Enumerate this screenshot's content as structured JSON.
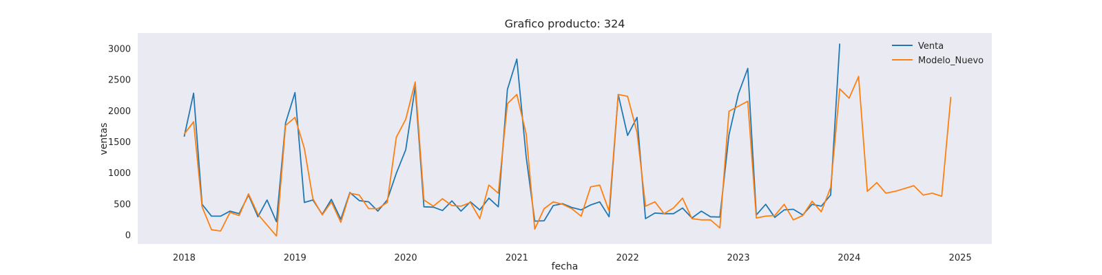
{
  "chart_data": {
    "type": "line",
    "title": "Grafico producto: 324",
    "xlabel": "fecha",
    "ylabel": "ventas",
    "xlim": [
      "2017-08-01",
      "2025-04-15"
    ],
    "ylim": [
      -150,
      3250
    ],
    "x_ticks": [
      {
        "value": "2018-01-01",
        "label": "2018"
      },
      {
        "value": "2019-01-01",
        "label": "2019"
      },
      {
        "value": "2020-01-01",
        "label": "2020"
      },
      {
        "value": "2021-01-01",
        "label": "2021"
      },
      {
        "value": "2022-01-01",
        "label": "2022"
      },
      {
        "value": "2023-01-01",
        "label": "2023"
      },
      {
        "value": "2024-01-01",
        "label": "2024"
      },
      {
        "value": "2025-01-01",
        "label": "2025"
      }
    ],
    "y_ticks": [
      0,
      500,
      1000,
      1500,
      2000,
      2500,
      3000
    ],
    "grid": false,
    "legend_position": "top-right",
    "series": [
      {
        "name": "Venta",
        "color": "#1f77b4",
        "points": [
          [
            "2018-01-01",
            1580
          ],
          [
            "2018-02-01",
            2280
          ],
          [
            "2018-03-01",
            490
          ],
          [
            "2018-04-01",
            300
          ],
          [
            "2018-05-01",
            300
          ],
          [
            "2018-06-01",
            380
          ],
          [
            "2018-07-01",
            340
          ],
          [
            "2018-08-01",
            640
          ],
          [
            "2018-09-01",
            290
          ],
          [
            "2018-10-01",
            560
          ],
          [
            "2018-11-01",
            210
          ],
          [
            "2018-12-01",
            1800
          ],
          [
            "2019-01-01",
            2290
          ],
          [
            "2019-02-01",
            520
          ],
          [
            "2019-03-01",
            560
          ],
          [
            "2019-04-01",
            330
          ],
          [
            "2019-05-01",
            570
          ],
          [
            "2019-06-01",
            250
          ],
          [
            "2019-07-01",
            680
          ],
          [
            "2019-08-01",
            550
          ],
          [
            "2019-09-01",
            530
          ],
          [
            "2019-10-01",
            380
          ],
          [
            "2019-11-01",
            560
          ],
          [
            "2019-12-01",
            990
          ],
          [
            "2020-01-01",
            1370
          ],
          [
            "2020-02-01",
            2380
          ],
          [
            "2020-03-01",
            450
          ],
          [
            "2020-04-01",
            445
          ],
          [
            "2020-05-01",
            390
          ],
          [
            "2020-06-01",
            545
          ],
          [
            "2020-07-01",
            380
          ],
          [
            "2020-08-01",
            530
          ],
          [
            "2020-09-01",
            400
          ],
          [
            "2020-10-01",
            590
          ],
          [
            "2020-11-01",
            450
          ],
          [
            "2020-12-01",
            2340
          ],
          [
            "2021-01-01",
            2830
          ],
          [
            "2021-02-01",
            1250
          ],
          [
            "2021-03-01",
            220
          ],
          [
            "2021-04-01",
            225
          ],
          [
            "2021-05-01",
            470
          ],
          [
            "2021-06-01",
            500
          ],
          [
            "2021-07-01",
            440
          ],
          [
            "2021-08-01",
            400
          ],
          [
            "2021-09-01",
            480
          ],
          [
            "2021-10-01",
            530
          ],
          [
            "2021-11-01",
            290
          ],
          [
            "2021-12-01",
            2260
          ],
          [
            "2022-01-01",
            1600
          ],
          [
            "2022-02-01",
            1890
          ],
          [
            "2022-03-01",
            260
          ],
          [
            "2022-04-01",
            350
          ],
          [
            "2022-05-01",
            340
          ],
          [
            "2022-06-01",
            340
          ],
          [
            "2022-07-01",
            430
          ],
          [
            "2022-08-01",
            270
          ],
          [
            "2022-09-01",
            380
          ],
          [
            "2022-10-01",
            290
          ],
          [
            "2022-11-01",
            285
          ],
          [
            "2022-12-01",
            1610
          ],
          [
            "2023-01-01",
            2270
          ],
          [
            "2023-02-01",
            2680
          ],
          [
            "2023-03-01",
            320
          ],
          [
            "2023-04-01",
            490
          ],
          [
            "2023-05-01",
            280
          ],
          [
            "2023-06-01",
            400
          ],
          [
            "2023-07-01",
            410
          ],
          [
            "2023-08-01",
            320
          ],
          [
            "2023-09-01",
            490
          ],
          [
            "2023-10-01",
            460
          ],
          [
            "2023-11-01",
            640
          ],
          [
            "2023-12-01",
            3080
          ]
        ]
      },
      {
        "name": "Modelo_Nuevo",
        "color": "#ff7f0e",
        "points": [
          [
            "2018-01-01",
            1620
          ],
          [
            "2018-02-01",
            1820
          ],
          [
            "2018-03-01",
            450
          ],
          [
            "2018-04-01",
            80
          ],
          [
            "2018-05-01",
            60
          ],
          [
            "2018-06-01",
            360
          ],
          [
            "2018-07-01",
            310
          ],
          [
            "2018-08-01",
            660
          ],
          [
            "2018-09-01",
            330
          ],
          [
            "2018-11-01",
            -20
          ],
          [
            "2018-12-01",
            1760
          ],
          [
            "2019-01-01",
            1890
          ],
          [
            "2019-02-01",
            1390
          ],
          [
            "2019-03-01",
            580
          ],
          [
            "2019-04-01",
            320
          ],
          [
            "2019-05-01",
            530
          ],
          [
            "2019-06-01",
            200
          ],
          [
            "2019-07-01",
            670
          ],
          [
            "2019-08-01",
            640
          ],
          [
            "2019-09-01",
            420
          ],
          [
            "2019-10-01",
            420
          ],
          [
            "2019-11-01",
            520
          ],
          [
            "2019-12-01",
            1570
          ],
          [
            "2020-01-01",
            1860
          ],
          [
            "2020-02-01",
            2460
          ],
          [
            "2020-03-01",
            560
          ],
          [
            "2020-04-01",
            460
          ],
          [
            "2020-05-01",
            580
          ],
          [
            "2020-06-01",
            470
          ],
          [
            "2020-07-01",
            460
          ],
          [
            "2020-08-01",
            520
          ],
          [
            "2020-09-01",
            260
          ],
          [
            "2020-10-01",
            800
          ],
          [
            "2020-11-01",
            670
          ],
          [
            "2020-12-01",
            2110
          ],
          [
            "2021-01-01",
            2260
          ],
          [
            "2021-02-01",
            1620
          ],
          [
            "2021-03-01",
            90
          ],
          [
            "2021-04-01",
            420
          ],
          [
            "2021-05-01",
            530
          ],
          [
            "2021-06-01",
            490
          ],
          [
            "2021-07-01",
            420
          ],
          [
            "2021-08-01",
            300
          ],
          [
            "2021-09-01",
            770
          ],
          [
            "2021-10-01",
            800
          ],
          [
            "2021-11-01",
            380
          ],
          [
            "2021-12-01",
            2260
          ],
          [
            "2022-01-01",
            2230
          ],
          [
            "2022-02-01",
            1650
          ],
          [
            "2022-03-01",
            460
          ],
          [
            "2022-04-01",
            530
          ],
          [
            "2022-05-01",
            340
          ],
          [
            "2022-06-01",
            430
          ],
          [
            "2022-07-01",
            590
          ],
          [
            "2022-08-01",
            260
          ],
          [
            "2022-09-01",
            240
          ],
          [
            "2022-10-01",
            240
          ],
          [
            "2022-11-01",
            110
          ],
          [
            "2022-12-01",
            1990
          ],
          [
            "2023-01-01",
            2070
          ],
          [
            "2023-02-01",
            2150
          ],
          [
            "2023-03-01",
            270
          ],
          [
            "2023-04-01",
            300
          ],
          [
            "2023-05-01",
            310
          ],
          [
            "2023-06-01",
            490
          ],
          [
            "2023-07-01",
            240
          ],
          [
            "2023-08-01",
            310
          ],
          [
            "2023-09-01",
            540
          ],
          [
            "2023-10-01",
            370
          ],
          [
            "2023-11-01",
            760
          ],
          [
            "2023-12-01",
            2350
          ],
          [
            "2024-01-01",
            2200
          ],
          [
            "2024-02-01",
            2550
          ],
          [
            "2024-03-01",
            700
          ],
          [
            "2024-04-01",
            840
          ],
          [
            "2024-05-01",
            670
          ],
          [
            "2024-06-01",
            700
          ],
          [
            "2024-08-01",
            790
          ],
          [
            "2024-09-01",
            640
          ],
          [
            "2024-10-01",
            670
          ],
          [
            "2024-11-01",
            620
          ],
          [
            "2024-12-01",
            2220
          ]
        ]
      }
    ]
  },
  "colors": {
    "plot_background": "#eaeaf2",
    "text": "#262626"
  }
}
